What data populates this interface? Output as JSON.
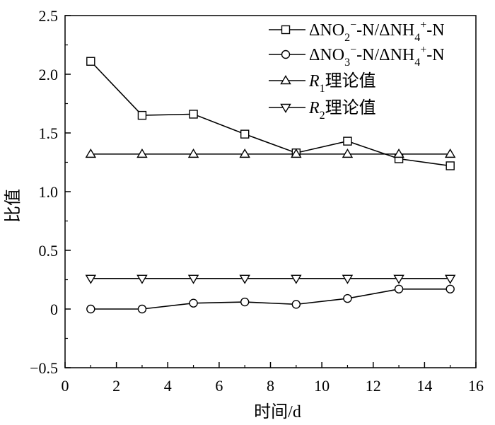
{
  "chart_data": {
    "type": "line",
    "xlabel": "时间/d",
    "ylabel": "比值",
    "xlim": [
      0,
      16
    ],
    "ylim": [
      -0.5,
      2.5
    ],
    "x_ticks": [
      0,
      2,
      4,
      6,
      8,
      10,
      12,
      14,
      16
    ],
    "y_ticks": [
      -0.5,
      0,
      0.5,
      1.0,
      1.5,
      2.0,
      2.5
    ],
    "x_tick_labels": [
      "0",
      "2",
      "4",
      "6",
      "8",
      "10",
      "12",
      "14",
      "16"
    ],
    "y_tick_labels": [
      "−0.5",
      "0",
      "0.5",
      "1.0",
      "1.5",
      "2.0",
      "2.5"
    ],
    "grid": false,
    "legend_position": "top-right",
    "x": [
      1,
      3,
      5,
      7,
      9,
      11,
      13,
      15
    ],
    "series": [
      {
        "name": "ΔNO2−-N/ΔNH4+-N",
        "name_main": "ΔNO",
        "name_sub1": "2",
        "name_sup1": "−",
        "name_mid": "-N/ΔNH",
        "name_sub2": "4",
        "name_sup2": "+",
        "name_end": "-N",
        "marker": "square",
        "values": [
          2.11,
          1.65,
          1.66,
          1.49,
          1.33,
          1.43,
          1.28,
          1.22
        ]
      },
      {
        "name": "ΔNO3−-N/ΔNH4+-N",
        "name_main": "ΔNO",
        "name_sub1": "3",
        "name_sup1": "−",
        "name_mid": "-N/ΔNH",
        "name_sub2": "4",
        "name_sup2": "+",
        "name_end": "-N",
        "marker": "circle",
        "values": [
          0.0,
          0.0,
          0.05,
          0.06,
          0.04,
          0.09,
          0.17,
          0.17
        ]
      },
      {
        "name": "R1理论值",
        "name_main": "R",
        "name_sub1": "1",
        "name_end": "理论值",
        "marker": "triangle-up",
        "values": [
          1.32,
          1.32,
          1.32,
          1.32,
          1.32,
          1.32,
          1.32,
          1.32
        ]
      },
      {
        "name": "R2理论值",
        "name_main": "R",
        "name_sub1": "2",
        "name_end": "理论值",
        "marker": "triangle-down",
        "values": [
          0.26,
          0.26,
          0.26,
          0.26,
          0.26,
          0.26,
          0.26,
          0.26
        ]
      }
    ]
  }
}
